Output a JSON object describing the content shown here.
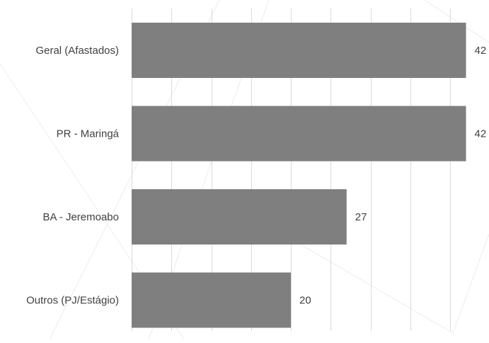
{
  "chart_data": {
    "type": "bar",
    "orientation": "horizontal",
    "categories": [
      "Geral (Afastados)",
      "PR - Maringá",
      "BA - Jeremoabo",
      "Outros (PJ/Estágio)"
    ],
    "values": [
      42,
      42,
      27,
      20
    ],
    "title": "",
    "xlabel": "",
    "ylabel": "",
    "xlim": [
      0,
      45
    ],
    "grid": true,
    "legend": "none",
    "bar_color": "#7f7f7f",
    "grid_color": "#d9d9d9",
    "label_color": "#404040"
  }
}
